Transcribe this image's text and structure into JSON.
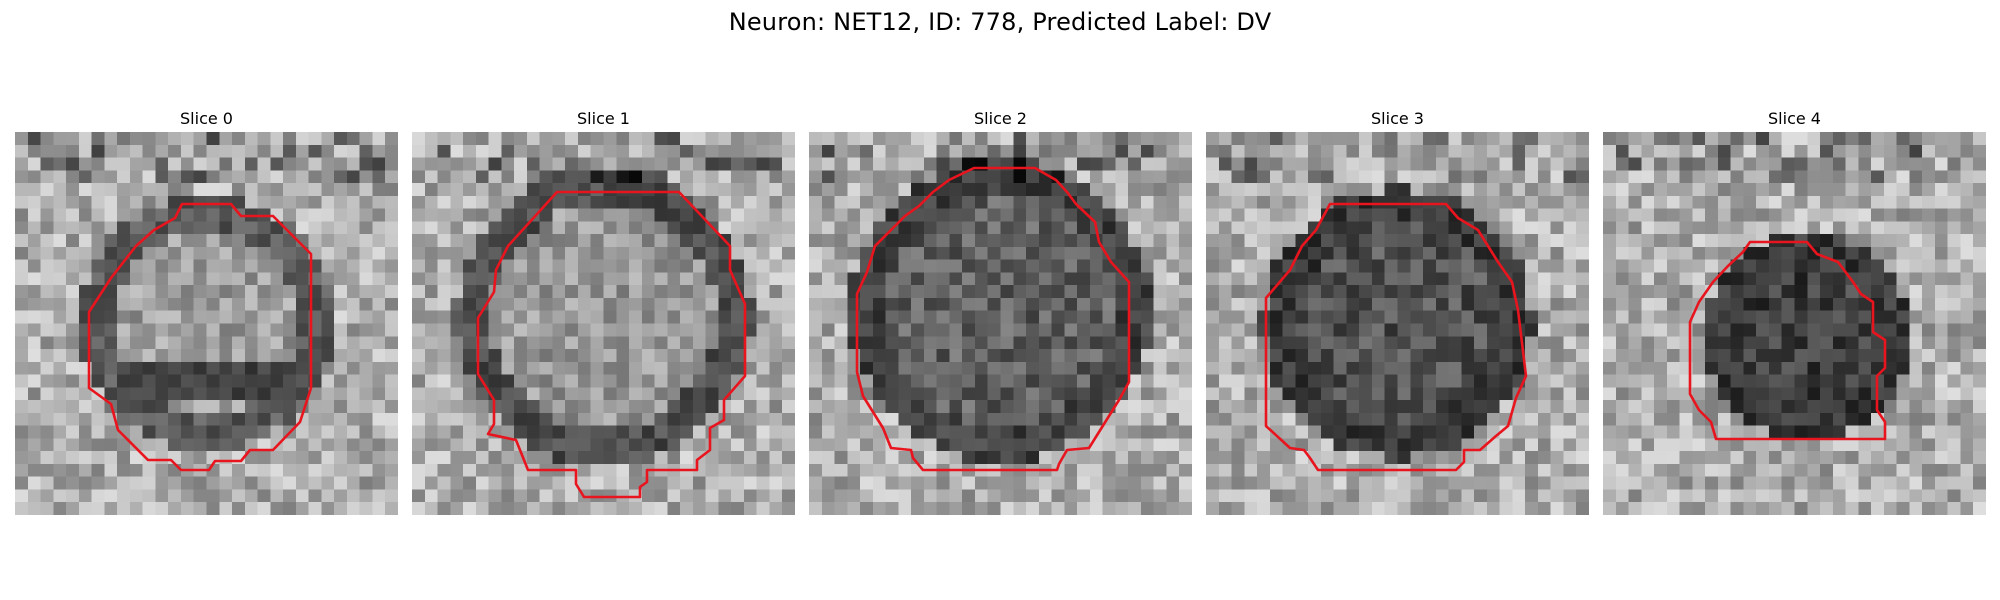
{
  "figure": {
    "title": "Neuron: NET12, ID: 778, Predicted Label: DV",
    "contour_color": "#e8141e"
  },
  "slices": [
    {
      "label": "Slice 0"
    },
    {
      "label": "Slice 1"
    },
    {
      "label": "Slice 2"
    },
    {
      "label": "Slice 3"
    },
    {
      "label": "Slice 4"
    }
  ]
}
